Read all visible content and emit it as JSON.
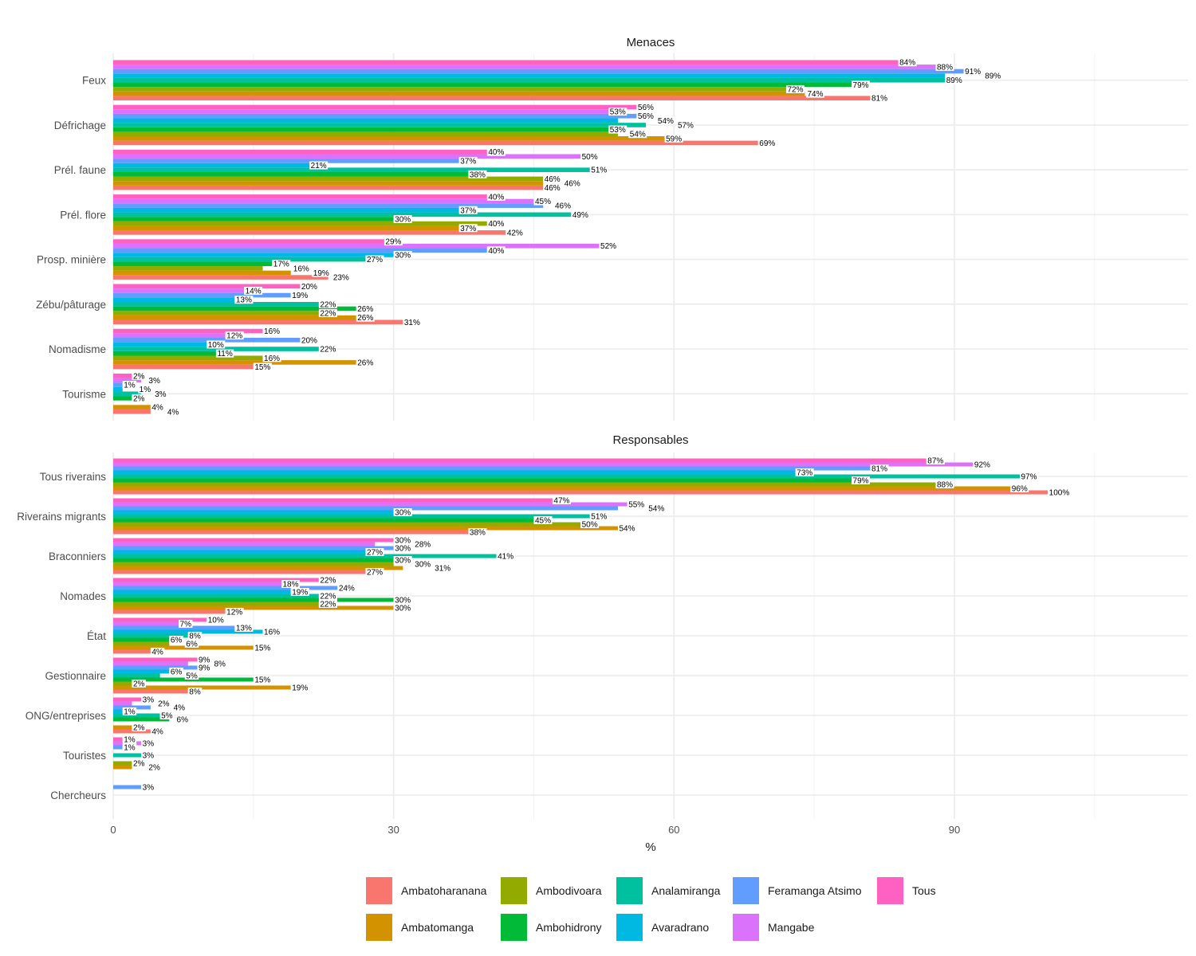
{
  "chart_data": [
    {
      "type": "bar",
      "orientation": "horizontal",
      "title": "Menaces",
      "categories": [
        "Feux",
        "Défrichage",
        "Prél. faune",
        "Prél. flore",
        "Prosp. minière",
        "Zébu/pâturage",
        "Nomadisme",
        "Tourisme"
      ],
      "series": [
        {
          "name": "Ambatoharanana",
          "values": [
            81,
            69,
            46,
            42,
            23,
            31,
            15,
            4
          ]
        },
        {
          "name": "Ambatomanga",
          "values": [
            74,
            59,
            46,
            37,
            19,
            26,
            26,
            4
          ]
        },
        {
          "name": "Ambodivoara",
          "values": [
            72,
            54,
            46,
            40,
            16,
            22,
            16,
            null
          ]
        },
        {
          "name": "Ambohidrony",
          "values": [
            79,
            53,
            38,
            30,
            17,
            26,
            11,
            2
          ]
        },
        {
          "name": "Analamiranga",
          "values": [
            89,
            57,
            51,
            49,
            27,
            22,
            22,
            3
          ]
        },
        {
          "name": "Avaradrano",
          "values": [
            89,
            54,
            21,
            37,
            30,
            13,
            10,
            1
          ]
        },
        {
          "name": "Feramanga Atsimo",
          "values": [
            91,
            56,
            37,
            46,
            40,
            19,
            20,
            1
          ]
        },
        {
          "name": "Mangabe",
          "values": [
            88,
            53,
            50,
            45,
            52,
            14,
            12,
            3
          ]
        },
        {
          "name": "Tous",
          "values": [
            84,
            56,
            40,
            40,
            29,
            20,
            16,
            2
          ]
        }
      ],
      "value_suffix": "%",
      "xlim": [
        0,
        115
      ],
      "xticks": [
        0,
        30,
        60,
        90
      ],
      "grid": true
    },
    {
      "type": "bar",
      "orientation": "horizontal",
      "title": "Responsables",
      "categories": [
        "Tous riverains",
        "Riverains migrants",
        "Braconniers",
        "Nomades",
        "État",
        "Gestionnaire",
        "ONG/entreprises",
        "Touristes",
        "Chercheurs"
      ],
      "series": [
        {
          "name": "Ambatoharanana",
          "values": [
            100,
            38,
            27,
            12,
            4,
            8,
            4,
            null,
            null
          ]
        },
        {
          "name": "Ambatomanga",
          "values": [
            96,
            54,
            31,
            30,
            15,
            19,
            2,
            2,
            null
          ]
        },
        {
          "name": "Ambodivoara",
          "values": [
            88,
            50,
            30,
            22,
            6,
            2,
            null,
            2,
            null
          ]
        },
        {
          "name": "Ambohidrony",
          "values": [
            79,
            45,
            30,
            30,
            6,
            15,
            6,
            null,
            null
          ]
        },
        {
          "name": "Analamiranga",
          "values": [
            97,
            51,
            41,
            22,
            8,
            5,
            5,
            3,
            null
          ]
        },
        {
          "name": "Avaradrano",
          "values": [
            73,
            30,
            27,
            19,
            16,
            6,
            1,
            null,
            null
          ]
        },
        {
          "name": "Feramanga Atsimo",
          "values": [
            81,
            54,
            30,
            24,
            13,
            9,
            4,
            1,
            3
          ]
        },
        {
          "name": "Mangabe",
          "values": [
            92,
            55,
            28,
            18,
            7,
            8,
            2,
            3,
            null
          ]
        },
        {
          "name": "Tous",
          "values": [
            87,
            47,
            30,
            22,
            10,
            9,
            3,
            1,
            null
          ]
        }
      ],
      "value_suffix": "%",
      "xlim": [
        0,
        115
      ],
      "xticks": [
        0,
        30,
        60,
        90
      ],
      "xlabel": "%",
      "grid": true
    }
  ],
  "colors": {
    "Ambatoharanana": "#F8766D",
    "Ambatomanga": "#D39200",
    "Ambodivoara": "#93AA00",
    "Ambohidrony": "#00BA38",
    "Analamiranga": "#00C19F",
    "Avaradrano": "#00B9E3",
    "Feramanga Atsimo": "#619CFF",
    "Mangabe": "#DB72FB",
    "Tous": "#FF61C3"
  },
  "legend": {
    "placement": "bottom",
    "items": [
      "Ambatoharanana",
      "Ambodivoara",
      "Analamiranga",
      "Feramanga Atsimo",
      "Tous",
      "Ambatomanga",
      "Ambohidrony",
      "Avaradrano",
      "Mangabe"
    ]
  }
}
